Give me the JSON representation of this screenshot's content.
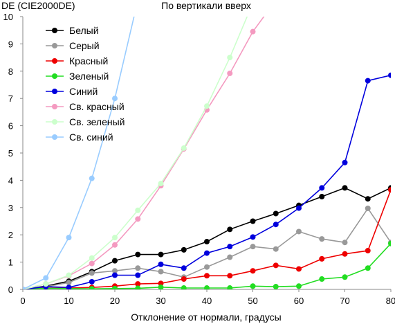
{
  "chart_data": {
    "type": "line",
    "title": "По вертикали вверх",
    "ylabel": "DE (CIE2000DE)",
    "xlabel": "Отклонение от нормали, градусы",
    "xlim": [
      0,
      80
    ],
    "ylim": [
      0,
      10
    ],
    "xticks": [
      0,
      10,
      20,
      30,
      40,
      50,
      60,
      70,
      80
    ],
    "yticks": [
      0,
      1,
      2,
      3,
      4,
      5,
      6,
      7,
      8,
      9,
      10
    ],
    "grid": false,
    "legend_position": "top-left",
    "series": [
      {
        "name": "Белый",
        "color": "#000000",
        "x": [
          0,
          5,
          10,
          15,
          20,
          25,
          30,
          35,
          40,
          45,
          50,
          55,
          60,
          65,
          70,
          75,
          80
        ],
        "y": [
          0,
          0.12,
          0.3,
          0.65,
          1.05,
          1.28,
          1.28,
          1.45,
          1.75,
          2.2,
          2.5,
          2.78,
          3.08,
          3.4,
          3.72,
          3.32,
          3.72
        ]
      },
      {
        "name": "Серый",
        "color": "#999999",
        "x": [
          0,
          5,
          10,
          15,
          20,
          25,
          30,
          35,
          40,
          45,
          50,
          55,
          60,
          65,
          70,
          75,
          80
        ],
        "y": [
          0,
          0.1,
          0.25,
          0.6,
          0.68,
          0.78,
          0.65,
          0.45,
          0.82,
          1.18,
          1.57,
          1.48,
          2.12,
          1.85,
          1.72,
          2.97,
          1.72
        ]
      },
      {
        "name": "Красный",
        "color": "#ee0000",
        "x": [
          0,
          5,
          10,
          15,
          20,
          25,
          30,
          35,
          40,
          45,
          50,
          55,
          60,
          65,
          70,
          75,
          80
        ],
        "y": [
          0,
          0.05,
          0.05,
          0.07,
          0.12,
          0.2,
          0.22,
          0.38,
          0.5,
          0.5,
          0.68,
          0.88,
          0.75,
          1.12,
          1.3,
          1.42,
          3.65
        ]
      },
      {
        "name": "Зеленый",
        "color": "#22dd22",
        "x": [
          0,
          5,
          10,
          15,
          20,
          25,
          30,
          35,
          40,
          45,
          50,
          55,
          60,
          65,
          70,
          75,
          80
        ],
        "y": [
          0,
          0.04,
          0.03,
          0.02,
          0.03,
          0.04,
          0.08,
          0.05,
          0.05,
          0.05,
          0.12,
          0.1,
          0.12,
          0.38,
          0.45,
          0.78,
          1.68
        ]
      },
      {
        "name": "Синий",
        "color": "#0000dd",
        "x": [
          0,
          5,
          10,
          15,
          20,
          25,
          30,
          35,
          40,
          45,
          50,
          55,
          60,
          65,
          70,
          75,
          80
        ],
        "y": [
          0,
          0.1,
          0.07,
          0.28,
          0.52,
          0.52,
          0.92,
          0.78,
          1.33,
          1.57,
          1.92,
          2.38,
          2.98,
          3.72,
          4.65,
          7.65,
          7.85
        ]
      },
      {
        "name": "Св. красный",
        "color": "#f49ac0",
        "x": [
          0,
          5,
          10,
          15,
          20,
          25,
          30,
          35,
          40,
          45,
          50,
          55
        ],
        "y": [
          0,
          0.2,
          0.5,
          0.95,
          1.63,
          2.58,
          3.8,
          5.15,
          6.58,
          7.92,
          9.45,
          10.6
        ]
      },
      {
        "name": "Св. зеленый",
        "color": "#ccffcc",
        "x": [
          0,
          5,
          10,
          15,
          20,
          25,
          30,
          35,
          40,
          45,
          50
        ],
        "y": [
          0,
          0.2,
          0.52,
          1.15,
          1.9,
          2.9,
          3.88,
          5.18,
          6.72,
          8.5,
          10.5
        ]
      },
      {
        "name": "Св. синий",
        "color": "#99ccff",
        "x": [
          0,
          5,
          10,
          15,
          20,
          25
        ],
        "y": [
          0,
          0.42,
          1.9,
          4.07,
          7.0,
          10.6
        ]
      }
    ]
  }
}
